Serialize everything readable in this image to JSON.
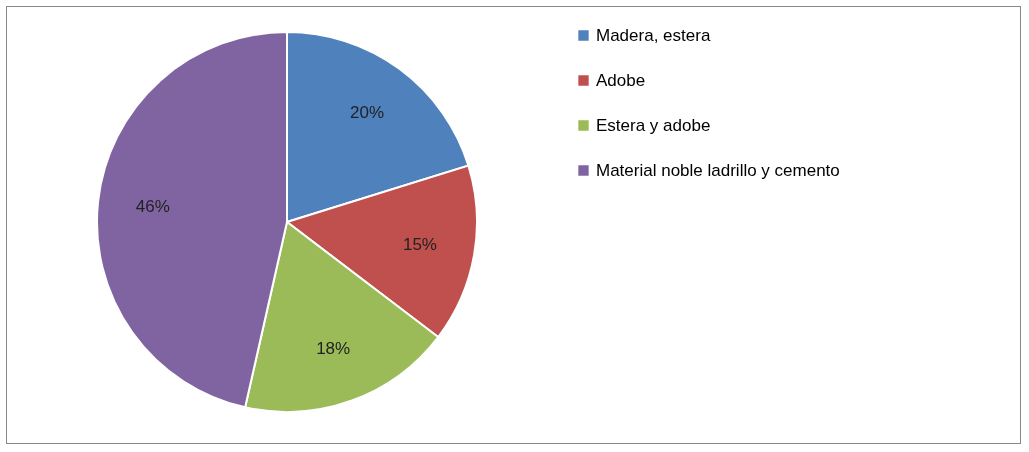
{
  "chart_data": {
    "type": "pie",
    "categories": [
      "Madera, estera",
      "Adobe",
      "Estera y adobe",
      "Material noble ladrillo y cemento"
    ],
    "values": [
      20,
      15,
      18,
      46
    ],
    "colors": [
      "#4f81bd",
      "#c0504d",
      "#9bbb59",
      "#8064a2"
    ],
    "value_labels": [
      "20%",
      "15%",
      "18%",
      "46%"
    ],
    "legend": "right"
  }
}
